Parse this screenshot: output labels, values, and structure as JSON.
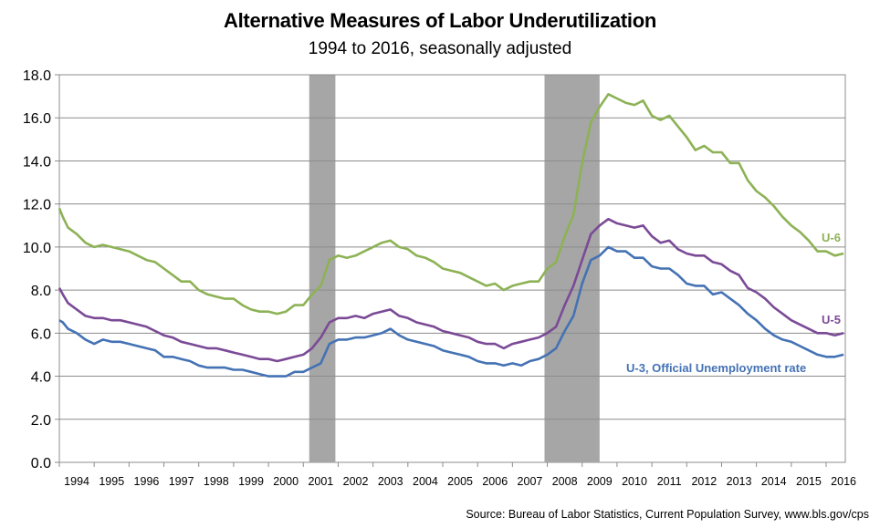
{
  "chart_data": {
    "type": "line",
    "title": "Alternative Measures of Labor Underutilization",
    "subtitle": "1994 to 2016, seasonally adjusted",
    "source": "Source: Bureau of Labor Statistics, Current Population Survey, www.bls.gov/cps",
    "ylim": [
      0,
      18
    ],
    "y_ticks": [
      "0.0",
      "2.0",
      "4.0",
      "6.0",
      "8.0",
      "10.0",
      "12.0",
      "14.0",
      "16.0",
      "18.0"
    ],
    "y_tick_values": [
      0,
      2,
      4,
      6,
      8,
      10,
      12,
      14,
      16,
      18
    ],
    "xlim": [
      1994.0,
      2016.55
    ],
    "x_ticks": [
      "1994",
      "1995",
      "1996",
      "1997",
      "1998",
      "1999",
      "2000",
      "2001",
      "2002",
      "2003",
      "2004",
      "2005",
      "2006",
      "2007",
      "2008",
      "2009",
      "2010",
      "2011",
      "2012",
      "2013",
      "2014",
      "2015",
      "2016"
    ],
    "grid": "horizontal",
    "recessions": [
      {
        "start": 2001.17,
        "end": 2001.92
      },
      {
        "start": 2007.92,
        "end": 2009.5
      }
    ],
    "series": [
      {
        "name": "U-6",
        "color": "#8db255",
        "x": [
          1994.0,
          1994.1,
          1994.25,
          1994.5,
          1994.75,
          1995.0,
          1995.25,
          1995.5,
          1995.75,
          1996.0,
          1996.25,
          1996.5,
          1996.75,
          1997.0,
          1997.25,
          1997.5,
          1997.75,
          1998.0,
          1998.25,
          1998.5,
          1998.75,
          1999.0,
          1999.25,
          1999.5,
          1999.75,
          2000.0,
          2000.25,
          2000.5,
          2000.75,
          2001.0,
          2001.25,
          2001.5,
          2001.75,
          2002.0,
          2002.25,
          2002.5,
          2002.75,
          2003.0,
          2003.25,
          2003.5,
          2003.75,
          2004.0,
          2004.25,
          2004.5,
          2004.75,
          2005.0,
          2005.25,
          2005.5,
          2005.75,
          2006.0,
          2006.25,
          2006.5,
          2006.75,
          2007.0,
          2007.25,
          2007.5,
          2007.75,
          2008.0,
          2008.25,
          2008.5,
          2008.75,
          2009.0,
          2009.25,
          2009.5,
          2009.75,
          2010.0,
          2010.25,
          2010.5,
          2010.75,
          2011.0,
          2011.25,
          2011.5,
          2011.75,
          2012.0,
          2012.25,
          2012.5,
          2012.75,
          2013.0,
          2013.25,
          2013.5,
          2013.75,
          2014.0,
          2014.25,
          2014.5,
          2014.75,
          2015.0,
          2015.25,
          2015.5,
          2015.75,
          2016.0,
          2016.25,
          2016.5
        ],
        "values": [
          11.8,
          11.4,
          10.9,
          10.6,
          10.2,
          10.0,
          10.1,
          10.0,
          9.9,
          9.8,
          9.6,
          9.4,
          9.3,
          9.0,
          8.7,
          8.4,
          8.4,
          8.0,
          7.8,
          7.7,
          7.6,
          7.6,
          7.3,
          7.1,
          7.0,
          7.0,
          6.9,
          7.0,
          7.3,
          7.3,
          7.8,
          8.2,
          9.4,
          9.6,
          9.5,
          9.6,
          9.8,
          10.0,
          10.2,
          10.3,
          10.0,
          9.9,
          9.6,
          9.5,
          9.3,
          9.0,
          8.9,
          8.8,
          8.6,
          8.4,
          8.2,
          8.3,
          8.0,
          8.2,
          8.3,
          8.4,
          8.4,
          9.0,
          9.3,
          10.5,
          11.5,
          13.9,
          15.8,
          16.5,
          17.1,
          16.9,
          16.7,
          16.6,
          16.8,
          16.1,
          15.9,
          16.1,
          15.6,
          15.1,
          14.5,
          14.7,
          14.4,
          14.4,
          13.9,
          13.9,
          13.1,
          12.6,
          12.3,
          11.9,
          11.4,
          11.0,
          10.7,
          10.3,
          9.8,
          9.8,
          9.6,
          9.7
        ]
      },
      {
        "name": "U-5",
        "color": "#7b4a96",
        "x": [
          1994.0,
          1994.1,
          1994.25,
          1994.5,
          1994.75,
          1995.0,
          1995.25,
          1995.5,
          1995.75,
          1996.0,
          1996.25,
          1996.5,
          1996.75,
          1997.0,
          1997.25,
          1997.5,
          1997.75,
          1998.0,
          1998.25,
          1998.5,
          1998.75,
          1999.0,
          1999.25,
          1999.5,
          1999.75,
          2000.0,
          2000.25,
          2000.5,
          2000.75,
          2001.0,
          2001.25,
          2001.5,
          2001.75,
          2002.0,
          2002.25,
          2002.5,
          2002.75,
          2003.0,
          2003.25,
          2003.5,
          2003.75,
          2004.0,
          2004.25,
          2004.5,
          2004.75,
          2005.0,
          2005.25,
          2005.5,
          2005.75,
          2006.0,
          2006.25,
          2006.5,
          2006.75,
          2007.0,
          2007.25,
          2007.5,
          2007.75,
          2008.0,
          2008.25,
          2008.5,
          2008.75,
          2009.0,
          2009.25,
          2009.5,
          2009.75,
          2010.0,
          2010.25,
          2010.5,
          2010.75,
          2011.0,
          2011.25,
          2011.5,
          2011.75,
          2012.0,
          2012.25,
          2012.5,
          2012.75,
          2013.0,
          2013.25,
          2013.5,
          2013.75,
          2014.0,
          2014.25,
          2014.5,
          2014.75,
          2015.0,
          2015.25,
          2015.5,
          2015.75,
          2016.0,
          2016.25,
          2016.5
        ],
        "values": [
          8.1,
          7.8,
          7.4,
          7.1,
          6.8,
          6.7,
          6.7,
          6.6,
          6.6,
          6.5,
          6.4,
          6.3,
          6.1,
          5.9,
          5.8,
          5.6,
          5.5,
          5.4,
          5.3,
          5.3,
          5.2,
          5.1,
          5.0,
          4.9,
          4.8,
          4.8,
          4.7,
          4.8,
          4.9,
          5.0,
          5.3,
          5.8,
          6.5,
          6.7,
          6.7,
          6.8,
          6.7,
          6.9,
          7.0,
          7.1,
          6.8,
          6.7,
          6.5,
          6.4,
          6.3,
          6.1,
          6.0,
          5.9,
          5.8,
          5.6,
          5.5,
          5.5,
          5.3,
          5.5,
          5.6,
          5.7,
          5.8,
          6.0,
          6.3,
          7.3,
          8.2,
          9.4,
          10.6,
          11.0,
          11.3,
          11.1,
          11.0,
          10.9,
          11.0,
          10.5,
          10.2,
          10.3,
          9.9,
          9.7,
          9.6,
          9.6,
          9.3,
          9.2,
          8.9,
          8.7,
          8.1,
          7.9,
          7.6,
          7.2,
          6.9,
          6.6,
          6.4,
          6.2,
          6.0,
          6.0,
          5.9,
          6.0
        ]
      },
      {
        "name": "U-3, Official Unemployment rate",
        "color": "#4472b4",
        "x": [
          1994.0,
          1994.1,
          1994.25,
          1994.5,
          1994.75,
          1995.0,
          1995.25,
          1995.5,
          1995.75,
          1996.0,
          1996.25,
          1996.5,
          1996.75,
          1997.0,
          1997.25,
          1997.5,
          1997.75,
          1998.0,
          1998.25,
          1998.5,
          1998.75,
          1999.0,
          1999.25,
          1999.5,
          1999.75,
          2000.0,
          2000.25,
          2000.5,
          2000.75,
          2001.0,
          2001.25,
          2001.5,
          2001.75,
          2002.0,
          2002.25,
          2002.5,
          2002.75,
          2003.0,
          2003.25,
          2003.5,
          2003.75,
          2004.0,
          2004.25,
          2004.5,
          2004.75,
          2005.0,
          2005.25,
          2005.5,
          2005.75,
          2006.0,
          2006.25,
          2006.5,
          2006.75,
          2007.0,
          2007.25,
          2007.5,
          2007.75,
          2008.0,
          2008.25,
          2008.5,
          2008.75,
          2009.0,
          2009.25,
          2009.5,
          2009.75,
          2010.0,
          2010.25,
          2010.5,
          2010.75,
          2011.0,
          2011.25,
          2011.5,
          2011.75,
          2012.0,
          2012.25,
          2012.5,
          2012.75,
          2013.0,
          2013.25,
          2013.5,
          2013.75,
          2014.0,
          2014.25,
          2014.5,
          2014.75,
          2015.0,
          2015.25,
          2015.5,
          2015.75,
          2016.0,
          2016.25,
          2016.5
        ],
        "values": [
          6.6,
          6.5,
          6.2,
          6.0,
          5.7,
          5.5,
          5.7,
          5.6,
          5.6,
          5.5,
          5.4,
          5.3,
          5.2,
          4.9,
          4.9,
          4.8,
          4.7,
          4.5,
          4.4,
          4.4,
          4.4,
          4.3,
          4.3,
          4.2,
          4.1,
          4.0,
          4.0,
          4.0,
          4.2,
          4.2,
          4.4,
          4.6,
          5.5,
          5.7,
          5.7,
          5.8,
          5.8,
          5.9,
          6.0,
          6.2,
          5.9,
          5.7,
          5.6,
          5.5,
          5.4,
          5.2,
          5.1,
          5.0,
          4.9,
          4.7,
          4.6,
          4.6,
          4.5,
          4.6,
          4.5,
          4.7,
          4.8,
          5.0,
          5.3,
          6.1,
          6.8,
          8.3,
          9.4,
          9.6,
          10.0,
          9.8,
          9.8,
          9.5,
          9.5,
          9.1,
          9.0,
          9.0,
          8.7,
          8.3,
          8.2,
          8.2,
          7.8,
          7.9,
          7.6,
          7.3,
          6.9,
          6.6,
          6.2,
          5.9,
          5.7,
          5.6,
          5.4,
          5.2,
          5.0,
          4.9,
          4.9,
          5.0
        ]
      }
    ],
    "series_labels": [
      "U-6",
      "U-5",
      "U-3, Official Unemployment rate"
    ]
  }
}
